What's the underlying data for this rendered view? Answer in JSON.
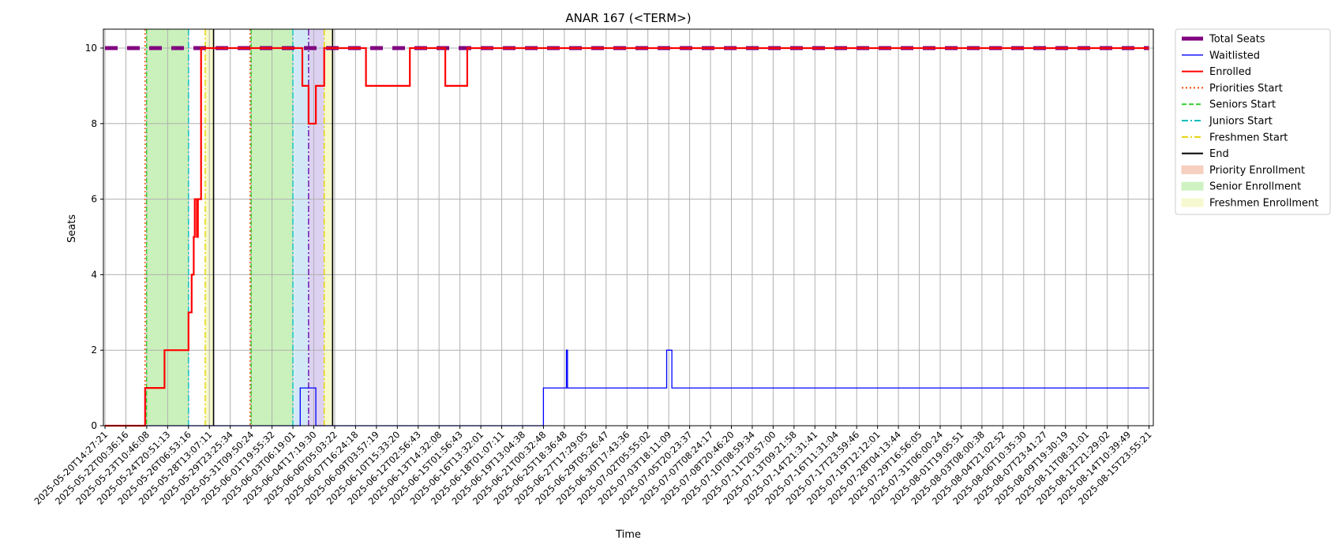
{
  "chart_data": {
    "type": "line",
    "title": "ANAR 167 (<TERM>)",
    "xlabel": "Time",
    "ylabel": "Seats",
    "ylim": [
      0,
      10.5
    ],
    "y_ticks": [
      0,
      2,
      4,
      6,
      8,
      10
    ],
    "grid": true,
    "legend_position": "outside-right-top",
    "x_domain": [
      "2025-05-20T14:27:21",
      "2025-08-15T23:55:21"
    ],
    "x_ticks": [
      "2025-05-20T14:27:21",
      "2025-05-22T00:36:16",
      "2025-05-23T10:46:08",
      "2025-05-24T20:51:13",
      "2025-05-26T06:53:16",
      "2025-05-28T13:07:11",
      "2025-05-29T23:25:34",
      "2025-05-31T09:50:24",
      "2025-06-01T19:55:32",
      "2025-06-03T06:19:01",
      "2025-06-04T17:19:30",
      "2025-06-06T05:03:22",
      "2025-06-07T16:24:18",
      "2025-06-09T03:57:19",
      "2025-06-10T15:33:20",
      "2025-06-12T02:56:43",
      "2025-06-13T14:32:08",
      "2025-06-15T01:56:43",
      "2025-06-16T13:32:01",
      "2025-06-18T01:07:11",
      "2025-06-19T13:04:38",
      "2025-06-21T00:32:48",
      "2025-06-25T18:36:48",
      "2025-06-27T17:29:05",
      "2025-06-29T05:26:47",
      "2025-06-30T17:43:36",
      "2025-07-02T05:55:02",
      "2025-07-03T18:11:09",
      "2025-07-05T20:23:37",
      "2025-07-07T08:24:17",
      "2025-07-08T20:46:20",
      "2025-07-10T08:59:34",
      "2025-07-11T20:57:00",
      "2025-07-13T09:21:58",
      "2025-07-14T21:31:41",
      "2025-07-16T11:31:04",
      "2025-07-17T23:59:46",
      "2025-07-19T12:12:01",
      "2025-07-28T04:13:44",
      "2025-07-29T16:56:05",
      "2025-07-31T06:00:24",
      "2025-08-01T19:05:51",
      "2025-08-03T08:00:38",
      "2025-08-04T21:02:52",
      "2025-08-06T10:35:30",
      "2025-08-07T23:41:27",
      "2025-08-09T19:30:19",
      "2025-08-11T08:31:01",
      "2025-08-12T21:29:02",
      "2025-08-14T10:39:49",
      "2025-08-15T23:55:21"
    ],
    "legend": [
      {
        "label": "Total Seats",
        "color": "#800080",
        "style": "thick-dashed"
      },
      {
        "label": "Waitlisted",
        "color": "#0000ff",
        "style": "solid-thin"
      },
      {
        "label": "Enrolled",
        "color": "#ff0000",
        "style": "solid"
      },
      {
        "label": "Priorities Start",
        "color": "#ff4500",
        "style": "dotted"
      },
      {
        "label": "Seniors Start",
        "color": "#32cd32",
        "style": "dashed"
      },
      {
        "label": "Juniors Start",
        "color": "#00bfbf",
        "style": "dashdot"
      },
      {
        "label": "Freshmen Start",
        "color": "#e6d200",
        "style": "dashdot"
      },
      {
        "label": "End",
        "color": "#000000",
        "style": "solid"
      },
      {
        "label": "Priority Enrollment",
        "color": "#f4c4b0",
        "style": "patch"
      },
      {
        "label": "Senior Enrollment",
        "color": "#c4f0b4",
        "style": "patch"
      },
      {
        "label": "Freshmen Enrollment",
        "color": "#f5f8c4",
        "style": "patch"
      }
    ],
    "spans": [
      {
        "kind": "senior",
        "color": "#c4f0b4",
        "start": 1.99,
        "end": 4.0
      },
      {
        "kind": "freshmen",
        "color": "#f5f8c4",
        "start": 4.8,
        "end": 5.2
      },
      {
        "kind": "senior",
        "color": "#c4f0b4",
        "start": 7.0,
        "end": 9.0
      },
      {
        "kind": "junior",
        "color": "#cde6f5",
        "start": 9.05,
        "end": 9.75
      },
      {
        "kind": "overlap",
        "color": "#d8ccf0",
        "start": 9.75,
        "end": 10.5
      },
      {
        "kind": "freshmen",
        "color": "#f5f8c4",
        "start": 10.5,
        "end": 10.9
      }
    ],
    "vlines": [
      {
        "kind": "priorities",
        "color": "#ff4500",
        "style": "dotted",
        "x": 1.92
      },
      {
        "kind": "seniors",
        "color": "#32cd32",
        "style": "dashed",
        "x": 1.99
      },
      {
        "kind": "juniors",
        "color": "#00bfbf",
        "style": "dashdot",
        "x": 4.0
      },
      {
        "kind": "freshmen",
        "color": "#e6d200",
        "style": "dashdot",
        "x": 4.8
      },
      {
        "kind": "end",
        "color": "#000000",
        "style": "solid",
        "x": 5.2
      },
      {
        "kind": "priorities",
        "color": "#ff4500",
        "style": "dotted",
        "x": 6.95
      },
      {
        "kind": "seniors",
        "color": "#32cd32",
        "style": "dashed",
        "x": 7.0
      },
      {
        "kind": "juniors",
        "color": "#00bfbf",
        "style": "dashdot",
        "x": 9.0
      },
      {
        "kind": "juniors",
        "color": "#6a0dad",
        "style": "dashdot",
        "x": 9.75
      },
      {
        "kind": "freshmen",
        "color": "#e6d200",
        "style": "dashdot",
        "x": 10.5
      },
      {
        "kind": "end",
        "color": "#000000",
        "style": "solid",
        "x": 10.9
      }
    ],
    "series": [
      {
        "name": "Total Seats",
        "color": "#800080",
        "points": [
          [
            0,
            10
          ],
          [
            50,
            10
          ]
        ]
      },
      {
        "name": "Waitlisted",
        "color": "#0000ff",
        "points": [
          [
            0,
            0
          ],
          [
            9.35,
            0
          ],
          [
            9.35,
            1
          ],
          [
            10.1,
            1
          ],
          [
            10.1,
            0
          ],
          [
            21.0,
            0
          ],
          [
            21.0,
            1
          ],
          [
            22.1,
            1
          ],
          [
            22.1,
            2
          ],
          [
            22.15,
            2
          ],
          [
            22.15,
            1
          ],
          [
            26.9,
            1
          ],
          [
            26.9,
            2
          ],
          [
            27.15,
            2
          ],
          [
            27.15,
            1
          ],
          [
            50,
            1
          ]
        ]
      },
      {
        "name": "Enrolled",
        "color": "#ff0000",
        "points": [
          [
            0,
            0
          ],
          [
            1.92,
            0
          ],
          [
            1.92,
            1
          ],
          [
            2.85,
            1
          ],
          [
            2.85,
            2
          ],
          [
            4.0,
            2
          ],
          [
            4.0,
            3
          ],
          [
            4.15,
            3
          ],
          [
            4.15,
            4
          ],
          [
            4.25,
            4
          ],
          [
            4.25,
            5
          ],
          [
            4.3,
            5
          ],
          [
            4.3,
            6
          ],
          [
            4.4,
            6
          ],
          [
            4.4,
            5
          ],
          [
            4.45,
            5
          ],
          [
            4.45,
            6
          ],
          [
            4.6,
            6
          ],
          [
            4.6,
            10
          ],
          [
            9.45,
            10
          ],
          [
            9.45,
            9
          ],
          [
            9.75,
            9
          ],
          [
            9.75,
            8
          ],
          [
            10.1,
            8
          ],
          [
            10.1,
            9
          ],
          [
            10.5,
            9
          ],
          [
            10.5,
            10
          ],
          [
            12.5,
            10
          ],
          [
            12.5,
            9
          ],
          [
            14.6,
            9
          ],
          [
            14.6,
            10
          ],
          [
            16.3,
            10
          ],
          [
            16.3,
            9
          ],
          [
            17.35,
            9
          ],
          [
            17.35,
            10
          ],
          [
            50,
            10
          ]
        ]
      }
    ]
  }
}
